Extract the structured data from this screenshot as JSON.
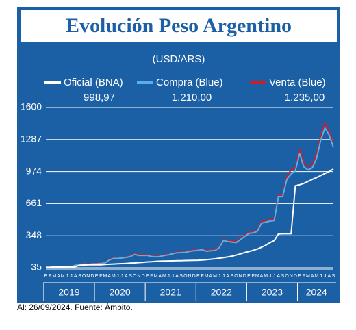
{
  "chart_data": {
    "type": "line",
    "title": "Evolución Peso Argentino",
    "subtitle": "(USD/ARS)",
    "footnote": "Al: 26/09/2024. Fuente: Ámbito.",
    "categories": [
      "E",
      "F",
      "M",
      "A",
      "M",
      "J",
      "J",
      "A",
      "S",
      "O",
      "N",
      "D",
      "E",
      "F",
      "M",
      "A",
      "M",
      "J",
      "J",
      "A",
      "S",
      "O",
      "N",
      "D",
      "E",
      "F",
      "M",
      "A",
      "M",
      "J",
      "J",
      "A",
      "S",
      "O",
      "N",
      "D",
      "E",
      "F",
      "M",
      "A",
      "M",
      "J",
      "J",
      "A",
      "S",
      "O",
      "N",
      "D",
      "E",
      "F",
      "M",
      "A",
      "M",
      "J",
      "J",
      "A",
      "S",
      "O",
      "N",
      "D",
      "E",
      "F",
      "M",
      "A",
      "M",
      "J",
      "J",
      "A",
      "S"
    ],
    "years": [
      "2019",
      "2020",
      "2021",
      "2022",
      "2023",
      "2024"
    ],
    "ylim": [
      35,
      1600
    ],
    "yticks": [
      35,
      348,
      661,
      974,
      1287,
      1600
    ],
    "grid": true,
    "series": [
      {
        "name": "Venta (Blue)",
        "color": "#c8202f",
        "value_label": "1.235,00",
        "values": [
          40,
          41,
          44,
          47,
          48,
          46,
          45,
          62,
          64,
          73,
          70,
          74,
          78,
          80,
          86,
          116,
          132,
          130,
          135,
          140,
          150,
          172,
          162,
          162,
          162,
          150,
          145,
          150,
          160,
          166,
          178,
          186,
          188,
          192,
          202,
          208,
          212,
          218,
          202,
          208,
          211,
          240,
          310,
          300,
          295,
          290,
          320,
          350,
          382,
          388,
          402,
          485,
          495,
          505,
          510,
          750,
          750,
          930,
          990,
          1010,
          1190,
          1060,
          1020,
          1040,
          1140,
          1320,
          1450,
          1370,
          1235
        ]
      },
      {
        "name": "Compra (Blue)",
        "color": "#5ab0e6",
        "value_label": "1.210,00",
        "values": [
          39,
          40,
          43,
          46,
          47,
          45,
          44,
          60,
          62,
          70,
          68,
          72,
          74,
          77,
          82,
          110,
          125,
          125,
          130,
          135,
          145,
          165,
          155,
          155,
          155,
          145,
          140,
          145,
          155,
          160,
          172,
          180,
          182,
          185,
          195,
          200,
          205,
          210,
          195,
          200,
          203,
          230,
          300,
          290,
          285,
          280,
          310,
          340,
          370,
          375,
          390,
          470,
          480,
          490,
          495,
          730,
          730,
          900,
          950,
          980,
          1150,
          1020,
          990,
          1010,
          1100,
          1280,
          1400,
          1330,
          1210
        ]
      },
      {
        "name": "Oficial (BNA)",
        "color": "#ffffff",
        "value_label": "998,97",
        "values": [
          39,
          40,
          42,
          44,
          46,
          45,
          44,
          46,
          59,
          62,
          63,
          63,
          63,
          64,
          67,
          69,
          71,
          73,
          75,
          77,
          80,
          82,
          85,
          88,
          92,
          94,
          97,
          99,
          100,
          101,
          102,
          103,
          104,
          105,
          106,
          107,
          108,
          110,
          113,
          118,
          122,
          128,
          134,
          140,
          148,
          158,
          170,
          183,
          193,
          204,
          217,
          235,
          255,
          280,
          300,
          365,
          367,
          367,
          367,
          835,
          845,
          858,
          878,
          897,
          915,
          935,
          955,
          975,
          998.97
        ]
      }
    ]
  }
}
